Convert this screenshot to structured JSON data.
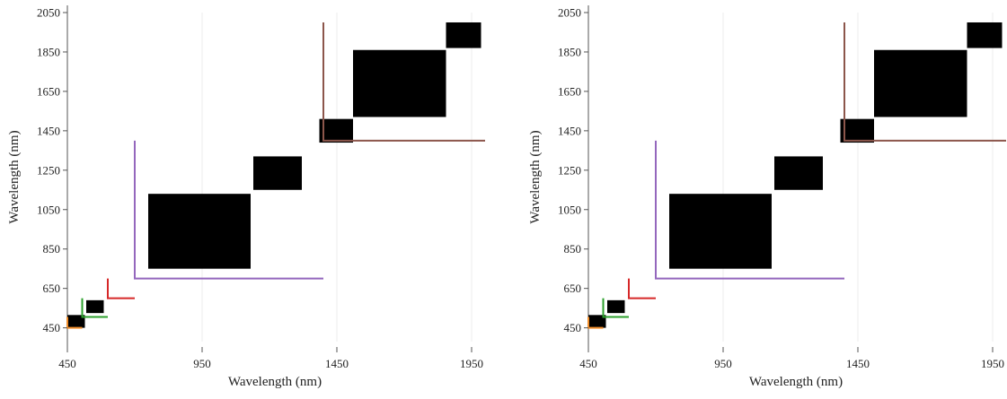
{
  "chart_data": [
    {
      "type": "heatmap",
      "xlabel": "Wavelength (nm)",
      "ylabel": "Wavelength (nm)",
      "xlim": [
        450,
        1990
      ],
      "ylim": [
        380,
        2050
      ],
      "xticks": [
        450,
        950,
        1450,
        1950
      ],
      "yticks": [
        450,
        650,
        850,
        1050,
        1250,
        1450,
        1650,
        1850,
        2050
      ],
      "grid": "off",
      "blocks": [
        {
          "x": [
            450,
            515
          ],
          "y": [
            450,
            515
          ],
          "color": "#000000"
        },
        {
          "x": [
            520,
            585
          ],
          "y": [
            525,
            590
          ],
          "color": "#000000"
        },
        {
          "x": [
            750,
            1130
          ],
          "y": [
            750,
            1130
          ],
          "color": "#000000"
        },
        {
          "x": [
            1140,
            1320
          ],
          "y": [
            1150,
            1320
          ],
          "color": "#000000"
        },
        {
          "x": [
            1385,
            1510
          ],
          "y": [
            1390,
            1510
          ],
          "color": "#000000"
        },
        {
          "x": [
            1510,
            1855
          ],
          "y": [
            1520,
            1860
          ],
          "color": "#000000"
        },
        {
          "x": [
            1855,
            1985
          ],
          "y": [
            1870,
            2000
          ],
          "color": "#000000"
        }
      ],
      "corners": [
        {
          "corner": [
            450,
            450
          ],
          "top": 505,
          "right": 505,
          "color": "#f28e2b"
        },
        {
          "corner": [
            505,
            505
          ],
          "top": 600,
          "right": 600,
          "color": "#2ca02c"
        },
        {
          "corner": [
            600,
            600
          ],
          "top": 700,
          "right": 700,
          "color": "#d62728"
        },
        {
          "corner": [
            700,
            700
          ],
          "top": 1400,
          "right": 1400,
          "color": "#9467bd"
        },
        {
          "corner": [
            1400,
            1400
          ],
          "top": 2000,
          "right": 2000,
          "color": "#8c564b"
        }
      ]
    },
    {
      "type": "heatmap",
      "xlabel": "Wavelength (nm)",
      "ylabel": "Wavelength (nm)",
      "xlim": [
        450,
        1990
      ],
      "ylim": [
        380,
        2050
      ],
      "xticks": [
        450,
        950,
        1450,
        1950
      ],
      "yticks": [
        450,
        650,
        850,
        1050,
        1250,
        1450,
        1650,
        1850,
        2050
      ],
      "grid": "off",
      "blocks": [
        {
          "x": [
            450,
            515
          ],
          "y": [
            450,
            515
          ],
          "color": "#000000"
        },
        {
          "x": [
            520,
            585
          ],
          "y": [
            525,
            590
          ],
          "color": "#000000"
        },
        {
          "x": [
            750,
            1130
          ],
          "y": [
            750,
            1130
          ],
          "color": "#000000"
        },
        {
          "x": [
            1140,
            1320
          ],
          "y": [
            1150,
            1320
          ],
          "color": "#000000"
        },
        {
          "x": [
            1385,
            1510
          ],
          "y": [
            1390,
            1510
          ],
          "color": "#000000"
        },
        {
          "x": [
            1510,
            1855
          ],
          "y": [
            1520,
            1860
          ],
          "color": "#000000"
        },
        {
          "x": [
            1855,
            1985
          ],
          "y": [
            1870,
            2000
          ],
          "color": "#000000"
        }
      ],
      "corners": [
        {
          "corner": [
            450,
            450
          ],
          "top": 505,
          "right": 505,
          "color": "#f28e2b"
        },
        {
          "corner": [
            505,
            505
          ],
          "top": 600,
          "right": 600,
          "color": "#2ca02c"
        },
        {
          "corner": [
            600,
            600
          ],
          "top": 700,
          "right": 700,
          "color": "#d62728"
        },
        {
          "corner": [
            700,
            700
          ],
          "top": 1400,
          "right": 1400,
          "color": "#9467bd"
        },
        {
          "corner": [
            1400,
            1400
          ],
          "top": 2000,
          "right": 2000,
          "color": "#8c564b"
        }
      ]
    }
  ]
}
